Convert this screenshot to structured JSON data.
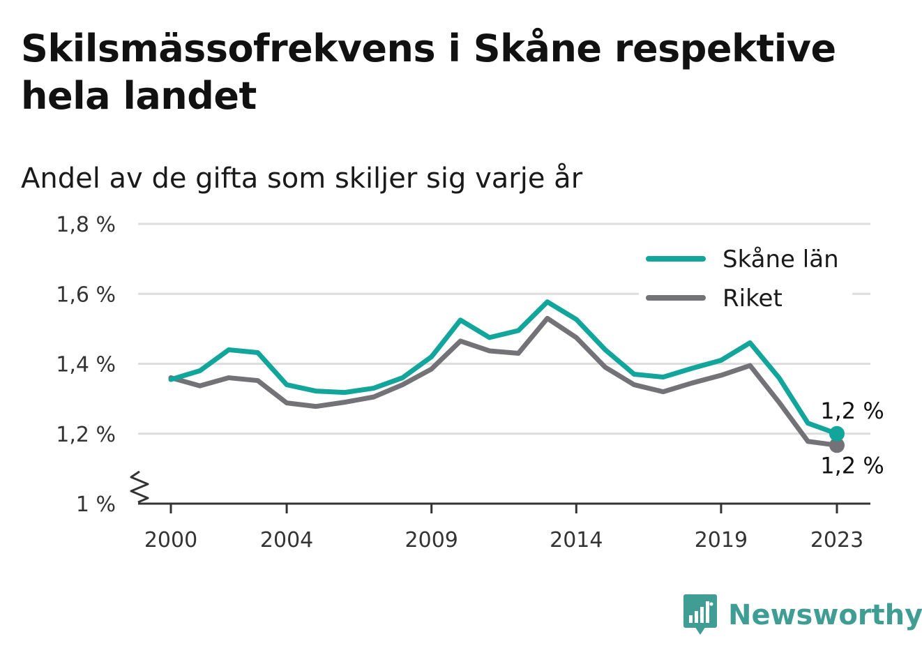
{
  "title": "Skilsmässofrekvens i Skåne respektive hela landet",
  "subtitle": "Andel av de gifta som skiljer sig varje år",
  "brand": "Newsworthy",
  "colors": {
    "skane": "#11a59b",
    "riket": "#737277",
    "grid": "#dddddd",
    "axis": "#333333",
    "brand": "#3f9d93"
  },
  "chart_data": {
    "type": "line",
    "x": [
      2000,
      2001,
      2002,
      2003,
      2004,
      2005,
      2006,
      2007,
      2008,
      2009,
      2010,
      2011,
      2012,
      2013,
      2014,
      2015,
      2016,
      2017,
      2018,
      2019,
      2020,
      2021,
      2022,
      2023
    ],
    "x_tick_labels": [
      "2000",
      "2004",
      "2009",
      "2014",
      "2019",
      "2023"
    ],
    "y_tick_labels": [
      "1 %",
      "1,2 %",
      "1,4 %",
      "1,6 %",
      "1,8 %"
    ],
    "ylim": [
      1.0,
      1.8
    ],
    "y_axis_break": true,
    "grid": true,
    "legend_position": "top-right",
    "series": [
      {
        "name": "Skåne län",
        "color": "#11a59b",
        "end_label": "1,2 %",
        "values": [
          1.355,
          1.38,
          1.44,
          1.432,
          1.34,
          1.322,
          1.318,
          1.33,
          1.36,
          1.42,
          1.525,
          1.475,
          1.495,
          1.577,
          1.527,
          1.44,
          1.37,
          1.362,
          1.387,
          1.41,
          1.46,
          1.36,
          1.23,
          1.2
        ]
      },
      {
        "name": "Riket",
        "color": "#737277",
        "end_label": "1,2 %",
        "values": [
          1.36,
          1.337,
          1.36,
          1.352,
          1.288,
          1.278,
          1.29,
          1.305,
          1.34,
          1.385,
          1.465,
          1.437,
          1.43,
          1.53,
          1.475,
          1.39,
          1.34,
          1.32,
          1.345,
          1.367,
          1.395,
          1.29,
          1.178,
          1.167
        ]
      }
    ]
  }
}
